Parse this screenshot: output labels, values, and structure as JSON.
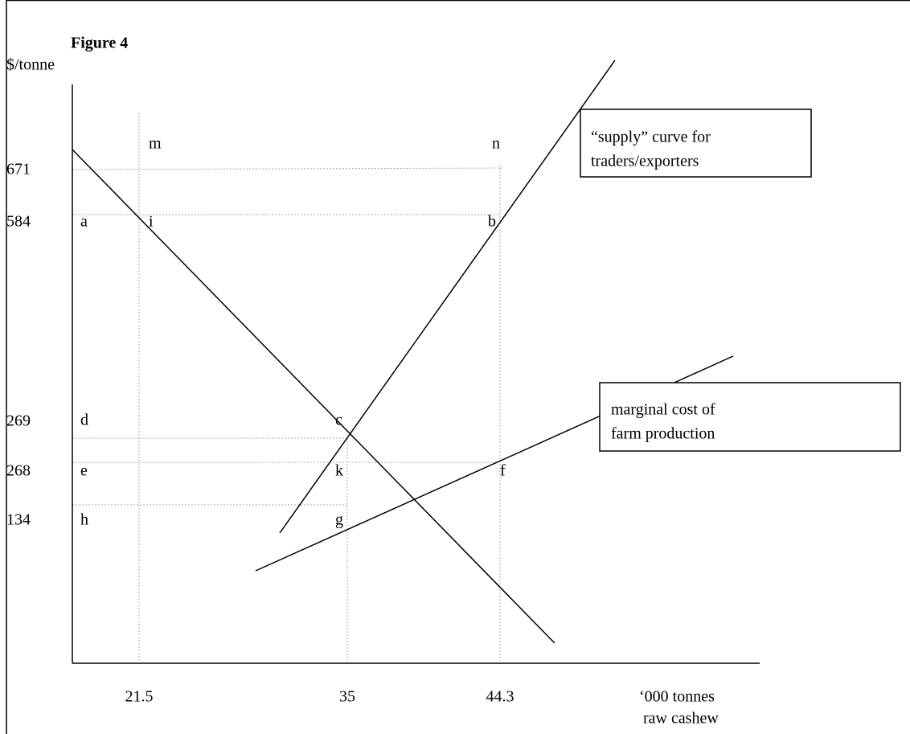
{
  "title": "Figure 4",
  "y_axis_label": "$/tonne",
  "x_axis_label": [
    "‘000 tonnes",
    "raw cashew"
  ],
  "y_labels": [
    "671",
    "584",
    "269",
    "268",
    "134"
  ],
  "x_labels": [
    "21.5",
    "35",
    "44.3"
  ],
  "points": [
    "m",
    "n",
    "a",
    "i",
    "b",
    "d",
    "c",
    "e",
    "k",
    "f",
    "h",
    "g"
  ],
  "boxes": [
    {
      "lines": [
        "“supply” curve  for",
        "traders/exporters"
      ]
    },
    {
      "lines": [
        "marginal cost of",
        "farm production"
      ]
    }
  ]
}
